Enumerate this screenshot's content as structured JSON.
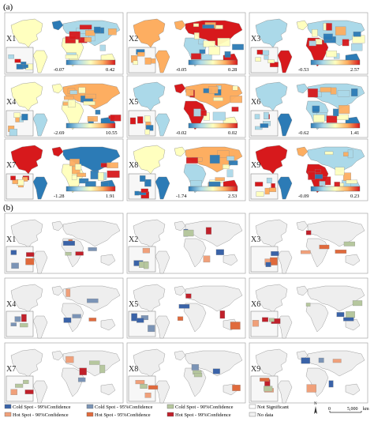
{
  "panel_a_label": "(a)",
  "panel_b_label": "(b)",
  "panel_a": [
    {
      "id": "X1",
      "min": "-0.07",
      "max": "0.42"
    },
    {
      "id": "X2",
      "min": "-0.05",
      "max": "0.28"
    },
    {
      "id": "X3",
      "min": "-0.53",
      "max": "2.57"
    },
    {
      "id": "X4",
      "min": "-2.69",
      "max": "10.55"
    },
    {
      "id": "X5",
      "min": "-0.02",
      "max": "0.02"
    },
    {
      "id": "X6",
      "min": "-0.62",
      "max": "1.41"
    },
    {
      "id": "X7",
      "min": "-1.28",
      "max": "1.91"
    },
    {
      "id": "X8",
      "min": "-1.74",
      "max": "2.53"
    },
    {
      "id": "X9",
      "min": "-0.09",
      "max": "0.23"
    }
  ],
  "panel_b": [
    {
      "id": "X1"
    },
    {
      "id": "X2"
    },
    {
      "id": "X3"
    },
    {
      "id": "X4"
    },
    {
      "id": "X5"
    },
    {
      "id": "X6"
    },
    {
      "id": "X7"
    },
    {
      "id": "X8"
    },
    {
      "id": "X9"
    }
  ],
  "legend": [
    {
      "label": "Cold Spot - 99%Confidence",
      "color": "#3a63a8"
    },
    {
      "label": "Cold Spot - 95%Confidence",
      "color": "#7b94b6"
    },
    {
      "label": "Cold Spot - 90%Confidence",
      "color": "#b6c79e"
    },
    {
      "label": "Not Significant",
      "color": "#ffffff"
    },
    {
      "label": "Hot Spot - 90%Confidence",
      "color": "#f0a07a"
    },
    {
      "label": "Hot Spot - 95%Confidence",
      "color": "#e06a3c"
    },
    {
      "label": "Hot Spot - 99%Confidence",
      "color": "#c0202a"
    },
    {
      "label": "No data",
      "color": "#f2f2f2"
    }
  ],
  "north_arrow_label": "N",
  "scale_bar": {
    "zero": "0",
    "max": "5,000",
    "unit": "km"
  },
  "colors": {
    "ramp": [
      "#2c7bb6",
      "#abd9e9",
      "#ffffbf",
      "#fdae61",
      "#d7191c"
    ],
    "nodata": "#efefef",
    "land_b": "#eeeeee"
  }
}
